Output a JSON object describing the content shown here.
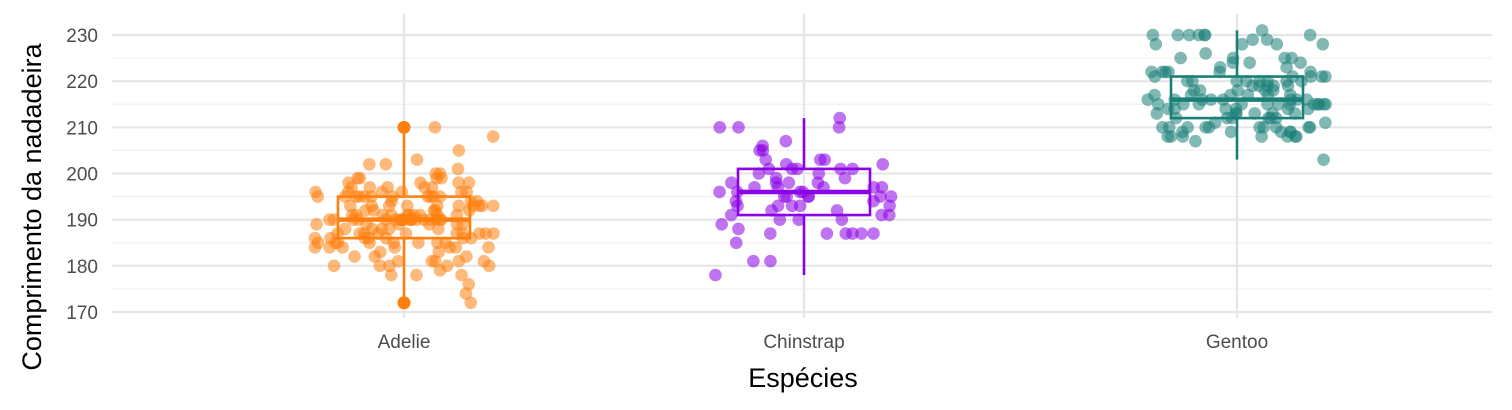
{
  "chart_data": {
    "type": "boxplot-jitter",
    "title": "",
    "xlabel": "Espécies",
    "ylabel": "Comprimento da nadadeira",
    "categories": [
      "Adelie",
      "Chinstrap",
      "Gentoo"
    ],
    "ylim": [
      169,
      234
    ],
    "yticks": [
      170,
      180,
      190,
      200,
      210,
      220,
      230
    ],
    "grid": true,
    "legend": "none",
    "colors": {
      "Adelie": "#ff7f0e",
      "Chinstrap": "#8b00e6",
      "Gentoo": "#1b7f79"
    },
    "boxes": [
      {
        "species": "Adelie",
        "q1": 186,
        "median": 190,
        "q3": 195,
        "whisker_low": 172,
        "whisker_high": 210,
        "outliers": [
          172,
          210
        ]
      },
      {
        "species": "Chinstrap",
        "q1": 191,
        "median": 196,
        "q3": 201,
        "whisker_low": 178,
        "whisker_high": 212,
        "outliers": []
      },
      {
        "species": "Gentoo",
        "q1": 212,
        "median": 216,
        "q3": 221,
        "whisker_low": 203,
        "whisker_high": 231,
        "outliers": []
      }
    ],
    "points": [
      {
        "species": "Adelie",
        "values": [
          181,
          186,
          195,
          193,
          190,
          181,
          195,
          193,
          190,
          186,
          180,
          182,
          191,
          198,
          185,
          195,
          197,
          184,
          194,
          174,
          180,
          189,
          185,
          180,
          187,
          183,
          187,
          172,
          180,
          178,
          178,
          188,
          184,
          195,
          196,
          190,
          180,
          181,
          184,
          182,
          195,
          186,
          196,
          185,
          190,
          182,
          179,
          190,
          191,
          186,
          188,
          190,
          200,
          187,
          191,
          186,
          193,
          181,
          194,
          185,
          195,
          185,
          192,
          184,
          192,
          195,
          188,
          190,
          198,
          190,
          190,
          196,
          197,
          190,
          195,
          191,
          184,
          187,
          195,
          189,
          196,
          187,
          193,
          191,
          194,
          190,
          189,
          189,
          190,
          202,
          205,
          185,
          186,
          187,
          208,
          190,
          196,
          178,
          192,
          192,
          203,
          183,
          190,
          193,
          184,
          199,
          190,
          181,
          197,
          198,
          191,
          193,
          197,
          191,
          196,
          188,
          199,
          189,
          189,
          187,
          198,
          176,
          202,
          186,
          199,
          191,
          195,
          191,
          210,
          190,
          197,
          193,
          199,
          187,
          190,
          191,
          200,
          185,
          193,
          193,
          187,
          188,
          190,
          192,
          185,
          190,
          184,
          195,
          193,
          187,
          201
        ]
      },
      {
        "species": "Chinstrap",
        "values": [
          192,
          196,
          193,
          188,
          197,
          198,
          178,
          197,
          195,
          198,
          193,
          194,
          185,
          201,
          190,
          201,
          197,
          181,
          190,
          195,
          181,
          191,
          187,
          193,
          195,
          197,
          200,
          200,
          191,
          205,
          187,
          201,
          187,
          203,
          195,
          199,
          195,
          210,
          192,
          205,
          210,
          187,
          196,
          196,
          196,
          201,
          190,
          212,
          187,
          198,
          199,
          201,
          193,
          203,
          187,
          197,
          191,
          203,
          202,
          194,
          206,
          189,
          195,
          207,
          202,
          193,
          210,
          198
        ]
      },
      {
        "species": "Gentoo",
        "values": [
          211,
          230,
          210,
          218,
          215,
          210,
          211,
          219,
          209,
          215,
          214,
          216,
          214,
          213,
          210,
          217,
          210,
          221,
          209,
          222,
          218,
          215,
          213,
          215,
          215,
          215,
          216,
          215,
          210,
          220,
          222,
          209,
          207,
          230,
          220,
          220,
          213,
          219,
          208,
          208,
          208,
          225,
          210,
          216,
          222,
          217,
          210,
          225,
          213,
          215,
          210,
          220,
          210,
          225,
          217,
          220,
          208,
          220,
          208,
          224,
          208,
          221,
          214,
          231,
          219,
          230,
          214,
          229,
          220,
          223,
          216,
          221,
          221,
          217,
          216,
          230,
          209,
          220,
          215,
          223,
          212,
          221,
          212,
          224,
          212,
          228,
          218,
          218,
          212,
          230,
          218,
          228,
          212,
          224,
          214,
          226,
          216,
          222,
          203,
          225,
          219,
          228,
          215,
          228,
          216,
          215,
          210,
          219,
          208,
          209,
          216,
          229,
          213,
          230,
          217,
          230,
          217,
          222,
          214,
          215,
          222,
          212,
          213
        ]
      }
    ]
  }
}
